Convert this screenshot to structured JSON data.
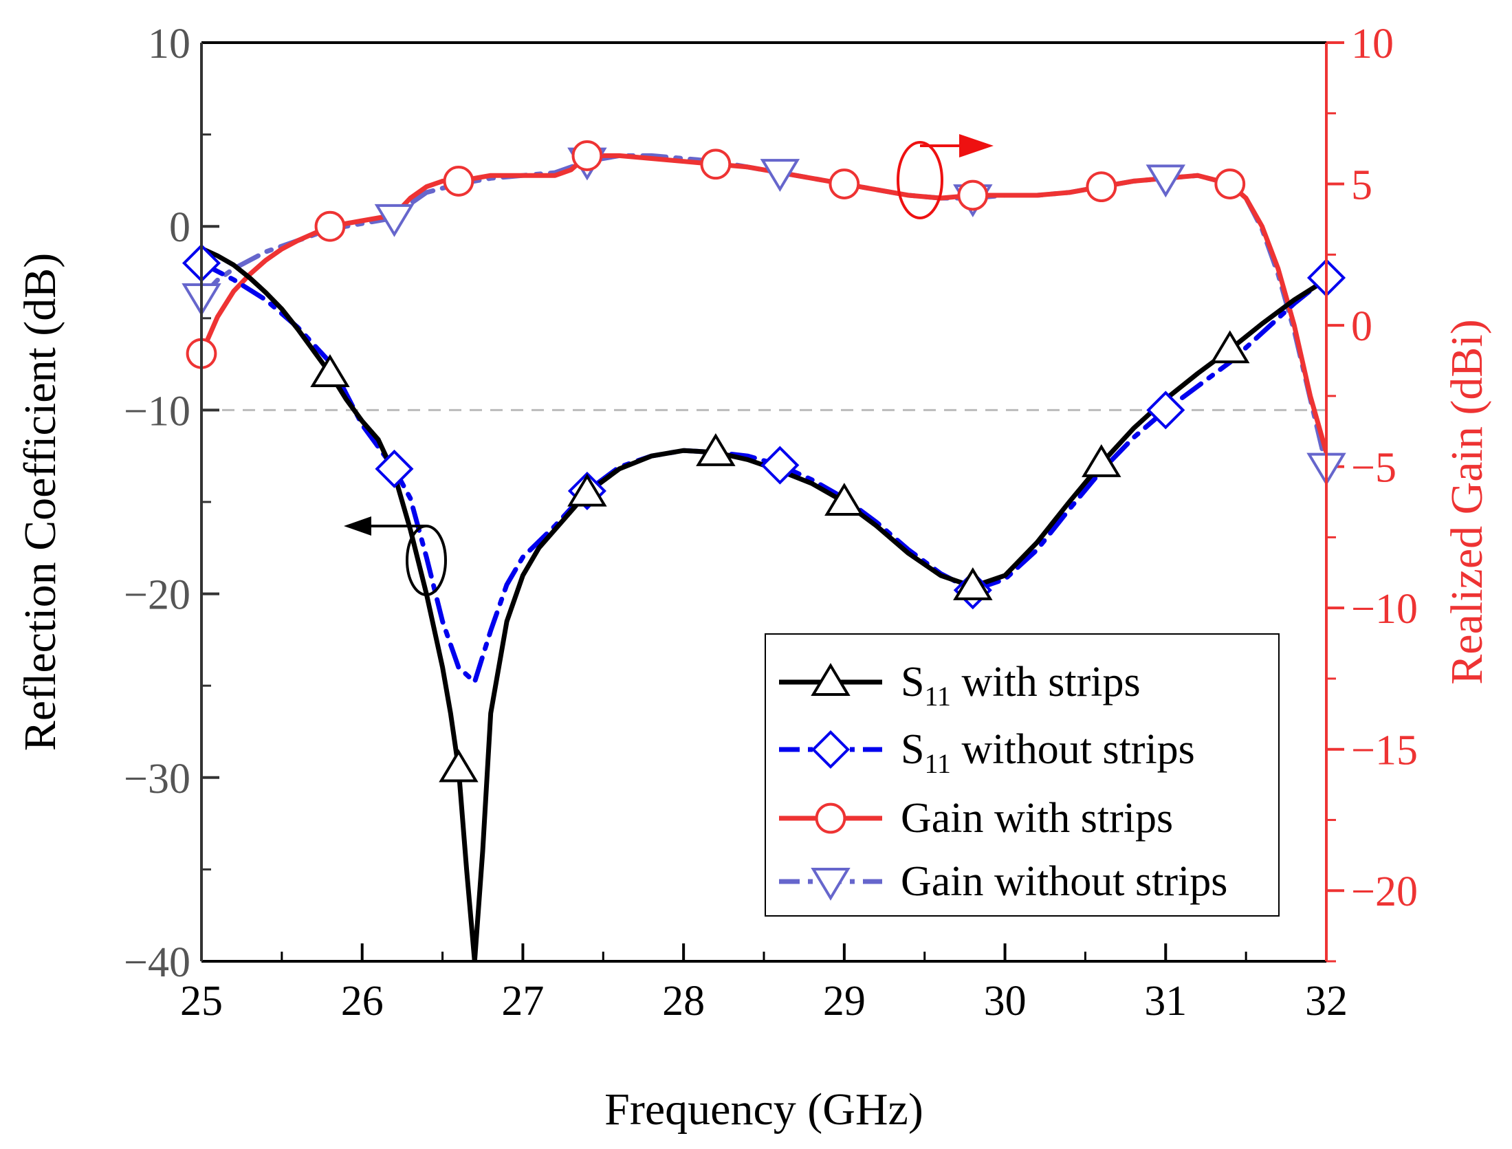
{
  "chart_data": {
    "type": "line",
    "title": "",
    "xlabel": "Frequency (GHz)",
    "ylabel_left": "Reflection Coefficient (dB)",
    "ylabel_right": "Realized Gain (dBi)",
    "xlim": [
      25,
      32
    ],
    "ylim_left": [
      -40,
      10
    ],
    "ylim_right": [
      -22.5,
      10
    ],
    "x_ticks": [
      "25",
      "26",
      "27",
      "28",
      "29",
      "30",
      "31",
      "32"
    ],
    "y_ticks_left": [
      "10",
      "0",
      "−10",
      "−20",
      "−30",
      "−40"
    ],
    "y_ticks_right": [
      "10",
      "5",
      "0",
      "−5",
      "−10",
      "−15",
      "−20"
    ],
    "reference_line": {
      "axis": "left",
      "y": -10
    },
    "colors": {
      "s11_with": "#000000",
      "s11_without": "#0000ee",
      "gain_with": "#ee3333",
      "gain_without": "#6666cc",
      "left_axis": "#333333",
      "right_axis": "#ee3333",
      "reference": "#bbbbbb"
    },
    "legend": {
      "position": "bottom-right",
      "entries": [
        {
          "prefix": "S",
          "sub": "11",
          "suffix": " with strips"
        },
        {
          "prefix": "S",
          "sub": "11",
          "suffix": " without strips"
        },
        {
          "prefix": "Gain with strips",
          "sub": "",
          "suffix": ""
        },
        {
          "prefix": "Gain without strips",
          "sub": "",
          "suffix": ""
        }
      ]
    },
    "series": [
      {
        "name": "S11 with strips",
        "axis": "left",
        "marker": "triangle-up",
        "dash": "solid",
        "x": [
          25.0,
          25.1,
          25.2,
          25.3,
          25.4,
          25.5,
          25.6,
          25.7,
          25.8,
          25.9,
          26.0,
          26.1,
          26.2,
          26.3,
          26.4,
          26.5,
          26.55,
          26.6,
          26.65,
          26.7,
          26.75,
          26.8,
          26.9,
          27.0,
          27.1,
          27.2,
          27.4,
          27.6,
          27.8,
          28.0,
          28.2,
          28.4,
          28.6,
          28.8,
          29.0,
          29.2,
          29.4,
          29.6,
          29.8,
          30.0,
          30.2,
          30.4,
          30.6,
          30.8,
          31.0,
          31.2,
          31.4,
          31.6,
          31.8,
          32.0
        ],
        "values": [
          -1.2,
          -1.6,
          -2.1,
          -2.8,
          -3.6,
          -4.5,
          -5.6,
          -6.8,
          -8.0,
          -9.4,
          -10.6,
          -11.6,
          -13.5,
          -16.5,
          -20.0,
          -24.0,
          -26.5,
          -29.5,
          -35.0,
          -40.0,
          -34.0,
          -26.5,
          -21.5,
          -19.0,
          -17.5,
          -16.5,
          -14.5,
          -13.2,
          -12.5,
          -12.2,
          -12.3,
          -12.7,
          -13.3,
          -14.0,
          -15.0,
          -16.3,
          -17.8,
          -19.0,
          -19.6,
          -19.0,
          -17.2,
          -15.0,
          -12.9,
          -11.0,
          -9.4,
          -8.0,
          -6.7,
          -5.3,
          -4.0,
          -2.9
        ],
        "marker_x": [
          25.8,
          26.6,
          27.4,
          28.2,
          29.0,
          29.8,
          30.6,
          31.4
        ]
      },
      {
        "name": "S11 without strips",
        "axis": "left",
        "marker": "diamond",
        "dash": "dash-dot",
        "x": [
          25.0,
          25.2,
          25.4,
          25.6,
          25.8,
          26.0,
          26.2,
          26.3,
          26.4,
          26.5,
          26.6,
          26.7,
          26.8,
          26.9,
          27.0,
          27.2,
          27.4,
          27.6,
          27.8,
          28.0,
          28.2,
          28.4,
          28.6,
          28.8,
          29.0,
          29.2,
          29.4,
          29.6,
          29.8,
          30.0,
          30.2,
          30.4,
          30.6,
          30.8,
          31.0,
          31.2,
          31.4,
          31.6,
          31.8,
          32.0
        ],
        "values": [
          -2.0,
          -2.9,
          -4.0,
          -5.5,
          -7.4,
          -10.8,
          -13.2,
          -14.8,
          -18.0,
          -21.5,
          -24.0,
          -24.8,
          -22.0,
          -19.5,
          -18.0,
          -16.3,
          -14.4,
          -13.1,
          -12.5,
          -12.2,
          -12.3,
          -12.5,
          -13.0,
          -13.8,
          -14.8,
          -16.1,
          -17.6,
          -18.9,
          -19.8,
          -19.2,
          -17.6,
          -15.4,
          -13.3,
          -11.5,
          -10.0,
          -8.7,
          -7.4,
          -5.8,
          -4.2,
          -2.8
        ],
        "marker_x": [
          25.0,
          26.2,
          27.4,
          28.6,
          29.8,
          31.0,
          32.0
        ]
      },
      {
        "name": "Gain with strips",
        "axis": "right",
        "marker": "circle",
        "dash": "solid",
        "x": [
          25.0,
          25.1,
          25.2,
          25.3,
          25.4,
          25.5,
          25.6,
          25.8,
          26.0,
          26.2,
          26.3,
          26.4,
          26.5,
          26.6,
          26.8,
          27.0,
          27.2,
          27.3,
          27.4,
          27.6,
          27.8,
          28.0,
          28.2,
          28.4,
          28.6,
          28.8,
          29.0,
          29.2,
          29.4,
          29.6,
          29.8,
          30.0,
          30.2,
          30.4,
          30.6,
          30.8,
          31.0,
          31.2,
          31.4,
          31.5,
          31.6,
          31.7,
          31.8,
          31.9,
          32.0
        ],
        "values": [
          -1.0,
          0.3,
          1.2,
          1.8,
          2.3,
          2.7,
          3.0,
          3.5,
          3.7,
          3.9,
          4.5,
          4.9,
          5.1,
          5.1,
          5.3,
          5.3,
          5.3,
          5.5,
          6.0,
          6.0,
          5.9,
          5.8,
          5.7,
          5.6,
          5.4,
          5.2,
          5.0,
          4.8,
          4.6,
          4.5,
          4.6,
          4.6,
          4.6,
          4.7,
          4.9,
          5.1,
          5.2,
          5.3,
          5.0,
          4.5,
          3.5,
          2.0,
          0.0,
          -2.5,
          -4.5
        ],
        "marker_x": [
          25.0,
          25.8,
          26.6,
          27.4,
          28.2,
          29.0,
          29.8,
          30.6,
          31.4
        ]
      },
      {
        "name": "Gain without strips",
        "axis": "right",
        "marker": "triangle-down",
        "dash": "dash-dot",
        "x": [
          25.0,
          25.1,
          25.2,
          25.4,
          25.6,
          25.8,
          26.0,
          26.2,
          26.3,
          26.4,
          26.6,
          26.8,
          27.0,
          27.2,
          27.4,
          27.6,
          27.8,
          28.0,
          28.2,
          28.4,
          28.6,
          28.8,
          29.0,
          29.2,
          29.4,
          29.6,
          29.8,
          30.0,
          30.2,
          30.4,
          30.6,
          30.8,
          31.0,
          31.2,
          31.4,
          31.5,
          31.6,
          31.7,
          31.8,
          31.9,
          32.0
        ],
        "values": [
          1.0,
          1.6,
          2.0,
          2.6,
          3.0,
          3.4,
          3.6,
          3.8,
          4.3,
          4.7,
          5.0,
          5.2,
          5.3,
          5.4,
          5.8,
          6.0,
          6.0,
          5.9,
          5.8,
          5.6,
          5.4,
          5.2,
          5.0,
          4.8,
          4.6,
          4.5,
          4.5,
          4.6,
          4.6,
          4.7,
          4.9,
          5.1,
          5.2,
          5.3,
          5.0,
          4.5,
          3.4,
          1.8,
          -0.2,
          -2.6,
          -5.0
        ],
        "marker_x": [
          25.0,
          26.2,
          27.4,
          28.6,
          29.8,
          31.0,
          32.0
        ]
      }
    ]
  }
}
